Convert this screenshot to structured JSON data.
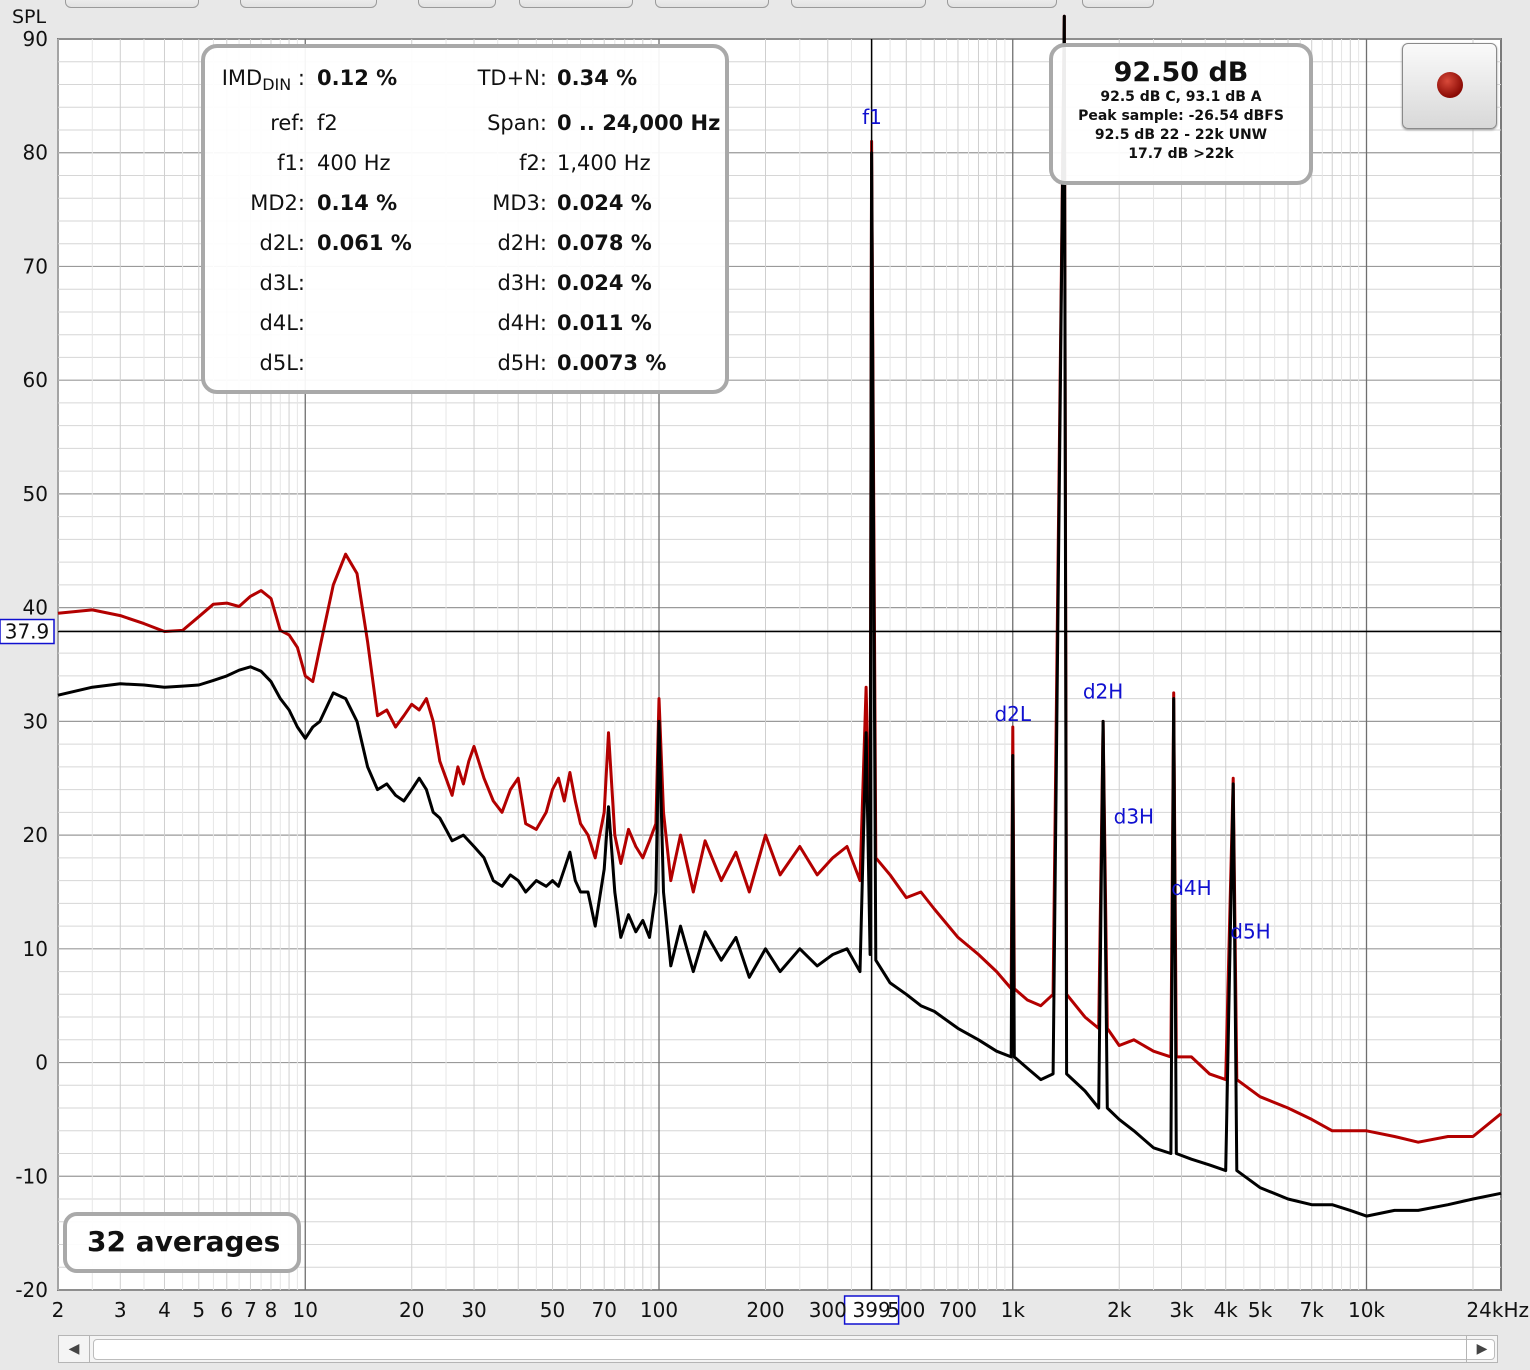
{
  "window": {
    "y_unit_label": "SPL"
  },
  "imd_panel": {
    "rows": [
      {
        "l_label": "IMD",
        "l_sub": "DIN",
        "l_value": "0.12 %",
        "r_label": "TD+N:",
        "r_value": "0.34 %",
        "l_bold": true,
        "r_bold": true
      },
      {
        "l_label": "ref:",
        "l_value": "f2",
        "r_label": "Span:",
        "r_value": "0 .. 24,000 Hz",
        "l_bold": false,
        "r_bold": true
      },
      {
        "l_label": "f1:",
        "l_value": "400 Hz",
        "r_label": "f2:",
        "r_value": "1,400 Hz",
        "l_bold": false,
        "r_bold": false
      },
      {
        "l_label": "MD2:",
        "l_value": "0.14 %",
        "r_label": "MD3:",
        "r_value": "0.024 %",
        "l_bold": true,
        "r_bold": true
      },
      {
        "l_label": "d2L:",
        "l_value": "0.061 %",
        "r_label": "d2H:",
        "r_value": "0.078 %",
        "l_bold": true,
        "r_bold": true
      },
      {
        "l_label": "d3L:",
        "l_value": "",
        "r_label": "d3H:",
        "r_value": "0.024 %",
        "l_bold": true,
        "r_bold": true
      },
      {
        "l_label": "d4L:",
        "l_value": "",
        "r_label": "d4H:",
        "r_value": "0.011 %",
        "l_bold": true,
        "r_bold": true
      },
      {
        "l_label": "d5L:",
        "l_value": "",
        "r_label": "d5H:",
        "r_value": "0.0073 %",
        "l_bold": true,
        "r_bold": true
      }
    ]
  },
  "level_panel": {
    "main": "92.50 dB",
    "lines": [
      "92.5 dB C, 93.1 dB A",
      "Peak sample: -26.54 dBFS",
      "92.5 dB 22 - 22k UNW",
      "17.7 dB >22k"
    ]
  },
  "averages_label": "32 averages",
  "cursor": {
    "y_value": "37.9",
    "x_value": "399"
  },
  "colors": {
    "series_red": "#b30000",
    "series_black": "#000000",
    "annotation": "#1010d0",
    "cursor": "#000000"
  },
  "chart_data": {
    "type": "line",
    "x_scale": "log",
    "xlim": [
      2,
      24000
    ],
    "ylim": [
      -20,
      90
    ],
    "ylabel": "SPL",
    "y_ticks": [
      90,
      80,
      70,
      60,
      50,
      40,
      30,
      20,
      10,
      0,
      -10,
      -20
    ],
    "x_ticks": [
      {
        "v": 2,
        "t": "2"
      },
      {
        "v": 3,
        "t": "3"
      },
      {
        "v": 4,
        "t": "4"
      },
      {
        "v": 5,
        "t": "5"
      },
      {
        "v": 6,
        "t": "6"
      },
      {
        "v": 7,
        "t": "7"
      },
      {
        "v": 8,
        "t": "8"
      },
      {
        "v": 10,
        "t": "10"
      },
      {
        "v": 20,
        "t": "20"
      },
      {
        "v": 30,
        "t": "30"
      },
      {
        "v": 50,
        "t": "50"
      },
      {
        "v": 70,
        "t": "70"
      },
      {
        "v": 100,
        "t": "100"
      },
      {
        "v": 200,
        "t": "200"
      },
      {
        "v": 300,
        "t": "300"
      },
      {
        "v": 500,
        "t": "500"
      },
      {
        "v": 700,
        "t": "700"
      },
      {
        "v": 1000,
        "t": "1k"
      },
      {
        "v": 2000,
        "t": "2k"
      },
      {
        "v": 3000,
        "t": "3k"
      },
      {
        "v": 4000,
        "t": "4k"
      },
      {
        "v": 5000,
        "t": "5k"
      },
      {
        "v": 7000,
        "t": "7k"
      },
      {
        "v": 10000,
        "t": "10k"
      },
      {
        "v": 24000,
        "t": "24kHz"
      }
    ],
    "series": [
      {
        "color": "#b30000",
        "points": [
          [
            2,
            39.5
          ],
          [
            2.5,
            39.8
          ],
          [
            3,
            39.3
          ],
          [
            3.5,
            38.6
          ],
          [
            4,
            37.9
          ],
          [
            4.5,
            38.0
          ],
          [
            5,
            39.2
          ],
          [
            5.5,
            40.3
          ],
          [
            6,
            40.4
          ],
          [
            6.5,
            40.1
          ],
          [
            7,
            41.0
          ],
          [
            7.5,
            41.5
          ],
          [
            8,
            40.8
          ],
          [
            8.5,
            38.0
          ],
          [
            9,
            37.6
          ],
          [
            9.5,
            36.5
          ],
          [
            10,
            34.0
          ],
          [
            10.5,
            33.5
          ],
          [
            11,
            36.5
          ],
          [
            12,
            42.0
          ],
          [
            13,
            44.7
          ],
          [
            14,
            43.0
          ],
          [
            15,
            37.0
          ],
          [
            16,
            30.5
          ],
          [
            17,
            31.0
          ],
          [
            18,
            29.5
          ],
          [
            19,
            30.5
          ],
          [
            20,
            31.5
          ],
          [
            21,
            31.0
          ],
          [
            22,
            32.0
          ],
          [
            23,
            30.0
          ],
          [
            24,
            26.5
          ],
          [
            25,
            25.0
          ],
          [
            26,
            23.5
          ],
          [
            27,
            26.0
          ],
          [
            28,
            24.5
          ],
          [
            29,
            26.5
          ],
          [
            30,
            27.8
          ],
          [
            32,
            25.0
          ],
          [
            34,
            23.0
          ],
          [
            36,
            22.0
          ],
          [
            38,
            24.0
          ],
          [
            40,
            25.0
          ],
          [
            42,
            21.0
          ],
          [
            45,
            20.5
          ],
          [
            48,
            22.0
          ],
          [
            50,
            24.0
          ],
          [
            52,
            25.0
          ],
          [
            54,
            23.0
          ],
          [
            56,
            25.5
          ],
          [
            58,
            23.0
          ],
          [
            60,
            21.0
          ],
          [
            63,
            20.0
          ],
          [
            66,
            18.0
          ],
          [
            70,
            22.0
          ],
          [
            72,
            29.0
          ],
          [
            75,
            20.0
          ],
          [
            78,
            17.5
          ],
          [
            82,
            20.5
          ],
          [
            86,
            19.0
          ],
          [
            90,
            18.0
          ],
          [
            94,
            19.5
          ],
          [
            98,
            21.0
          ],
          [
            100,
            32.0
          ],
          [
            103,
            22.0
          ],
          [
            108,
            16.0
          ],
          [
            115,
            20.0
          ],
          [
            125,
            15.0
          ],
          [
            135,
            19.5
          ],
          [
            150,
            16.0
          ],
          [
            165,
            18.5
          ],
          [
            180,
            15.0
          ],
          [
            200,
            20.0
          ],
          [
            220,
            16.5
          ],
          [
            250,
            19.0
          ],
          [
            280,
            16.5
          ],
          [
            310,
            18.0
          ],
          [
            340,
            19.0
          ],
          [
            370,
            16.0
          ],
          [
            385,
            33.0
          ],
          [
            395,
            18.0
          ],
          [
            399,
            81.0
          ],
          [
            410,
            18.0
          ],
          [
            450,
            16.5
          ],
          [
            500,
            14.5
          ],
          [
            550,
            15.0
          ],
          [
            600,
            13.5
          ],
          [
            700,
            11.0
          ],
          [
            800,
            9.5
          ],
          [
            900,
            8.0
          ],
          [
            990,
            6.5
          ],
          [
            1000,
            29.5
          ],
          [
            1010,
            6.5
          ],
          [
            1100,
            5.5
          ],
          [
            1200,
            5.0
          ],
          [
            1300,
            6.0
          ],
          [
            1399,
            92.0
          ],
          [
            1420,
            6.0
          ],
          [
            1600,
            4.0
          ],
          [
            1750,
            3.0
          ],
          [
            1800,
            30.0
          ],
          [
            1850,
            3.0
          ],
          [
            2000,
            1.5
          ],
          [
            2200,
            2.0
          ],
          [
            2500,
            1.0
          ],
          [
            2800,
            0.5
          ],
          [
            2850,
            32.5
          ],
          [
            2900,
            0.5
          ],
          [
            3200,
            0.5
          ],
          [
            3600,
            -1.0
          ],
          [
            4000,
            -1.5
          ],
          [
            4200,
            25.0
          ],
          [
            4300,
            -1.5
          ],
          [
            5000,
            -3.0
          ],
          [
            6000,
            -4.0
          ],
          [
            7000,
            -5.0
          ],
          [
            8000,
            -6.0
          ],
          [
            9000,
            -6.0
          ],
          [
            10000,
            -6.0
          ],
          [
            12000,
            -6.5
          ],
          [
            14000,
            -7.0
          ],
          [
            17000,
            -6.5
          ],
          [
            20000,
            -6.5
          ],
          [
            24000,
            -4.5
          ]
        ]
      },
      {
        "color": "#000000",
        "points": [
          [
            2,
            32.3
          ],
          [
            2.5,
            33.0
          ],
          [
            3,
            33.3
          ],
          [
            3.5,
            33.2
          ],
          [
            4,
            33.0
          ],
          [
            4.5,
            33.1
          ],
          [
            5,
            33.2
          ],
          [
            5.5,
            33.6
          ],
          [
            6,
            34.0
          ],
          [
            6.5,
            34.5
          ],
          [
            7,
            34.8
          ],
          [
            7.5,
            34.4
          ],
          [
            8,
            33.5
          ],
          [
            8.5,
            32.0
          ],
          [
            9,
            31.0
          ],
          [
            9.5,
            29.5
          ],
          [
            10,
            28.5
          ],
          [
            10.5,
            29.5
          ],
          [
            11,
            30.0
          ],
          [
            12,
            32.5
          ],
          [
            13,
            32.0
          ],
          [
            14,
            30.0
          ],
          [
            15,
            26.0
          ],
          [
            16,
            24.0
          ],
          [
            17,
            24.5
          ],
          [
            18,
            23.5
          ],
          [
            19,
            23.0
          ],
          [
            20,
            24.0
          ],
          [
            21,
            25.0
          ],
          [
            22,
            24.0
          ],
          [
            23,
            22.0
          ],
          [
            24,
            21.5
          ],
          [
            25,
            20.5
          ],
          [
            26,
            19.5
          ],
          [
            28,
            20.0
          ],
          [
            30,
            19.0
          ],
          [
            32,
            18.0
          ],
          [
            34,
            16.0
          ],
          [
            36,
            15.5
          ],
          [
            38,
            16.5
          ],
          [
            40,
            16.0
          ],
          [
            42,
            15.0
          ],
          [
            45,
            16.0
          ],
          [
            48,
            15.5
          ],
          [
            50,
            16.0
          ],
          [
            52,
            15.5
          ],
          [
            54,
            17.0
          ],
          [
            56,
            18.5
          ],
          [
            58,
            16.0
          ],
          [
            60,
            15.0
          ],
          [
            63,
            15.0
          ],
          [
            66,
            12.0
          ],
          [
            70,
            17.0
          ],
          [
            72,
            22.5
          ],
          [
            75,
            15.0
          ],
          [
            78,
            11.0
          ],
          [
            82,
            13.0
          ],
          [
            86,
            11.5
          ],
          [
            90,
            12.5
          ],
          [
            94,
            11.0
          ],
          [
            98,
            15.0
          ],
          [
            100,
            30.0
          ],
          [
            103,
            15.0
          ],
          [
            108,
            8.5
          ],
          [
            115,
            12.0
          ],
          [
            125,
            8.0
          ],
          [
            135,
            11.5
          ],
          [
            150,
            9.0
          ],
          [
            165,
            11.0
          ],
          [
            180,
            7.5
          ],
          [
            200,
            10.0
          ],
          [
            220,
            8.0
          ],
          [
            250,
            10.0
          ],
          [
            280,
            8.5
          ],
          [
            310,
            9.5
          ],
          [
            340,
            10.0
          ],
          [
            370,
            8.0
          ],
          [
            385,
            29.0
          ],
          [
            395,
            9.5
          ],
          [
            399,
            80.0
          ],
          [
            410,
            9.0
          ],
          [
            450,
            7.0
          ],
          [
            500,
            6.0
          ],
          [
            550,
            5.0
          ],
          [
            600,
            4.5
          ],
          [
            700,
            3.0
          ],
          [
            800,
            2.0
          ],
          [
            900,
            1.0
          ],
          [
            990,
            0.5
          ],
          [
            1000,
            27.0
          ],
          [
            1010,
            0.5
          ],
          [
            1100,
            -0.5
          ],
          [
            1200,
            -1.5
          ],
          [
            1300,
            -1.0
          ],
          [
            1399,
            92.0
          ],
          [
            1420,
            -1.0
          ],
          [
            1600,
            -2.5
          ],
          [
            1750,
            -4.0
          ],
          [
            1800,
            30.0
          ],
          [
            1850,
            -4.0
          ],
          [
            2000,
            -5.0
          ],
          [
            2200,
            -6.0
          ],
          [
            2500,
            -7.5
          ],
          [
            2800,
            -8.0
          ],
          [
            2850,
            32.0
          ],
          [
            2900,
            -8.0
          ],
          [
            3200,
            -8.5
          ],
          [
            3600,
            -9.0
          ],
          [
            4000,
            -9.5
          ],
          [
            4200,
            24.5
          ],
          [
            4300,
            -9.5
          ],
          [
            5000,
            -11.0
          ],
          [
            6000,
            -12.0
          ],
          [
            7000,
            -12.5
          ],
          [
            8000,
            -12.5
          ],
          [
            9000,
            -13.0
          ],
          [
            10000,
            -13.5
          ],
          [
            12000,
            -13.0
          ],
          [
            14000,
            -13.0
          ],
          [
            17000,
            -12.5
          ],
          [
            20000,
            -12.0
          ],
          [
            24000,
            -11.5
          ]
        ]
      }
    ],
    "annotations": [
      {
        "text": "f1",
        "x": 400,
        "y": 82
      },
      {
        "text": "d2L",
        "x": 1000,
        "y": 29.5
      },
      {
        "text": "d2H",
        "x": 1800,
        "y": 31.5
      },
      {
        "text": "d3H",
        "x": 2200,
        "y": 20.5
      },
      {
        "text": "d4H",
        "x": 3200,
        "y": 14.2
      },
      {
        "text": "d5H",
        "x": 4700,
        "y": 10.4
      }
    ]
  }
}
